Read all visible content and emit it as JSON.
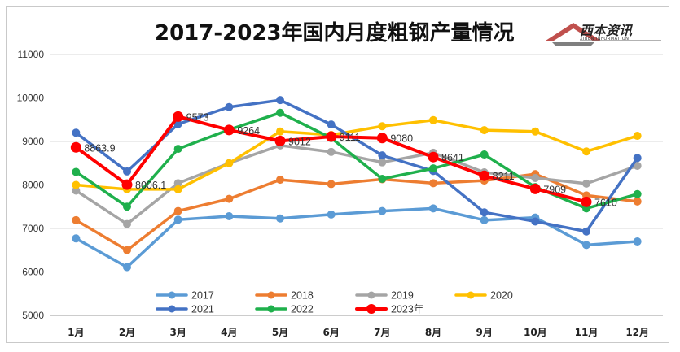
{
  "chart_data": {
    "type": "line",
    "title": "2017-2023年国内月度粗钢产量情况",
    "categories": [
      "1月",
      "2月",
      "3月",
      "4月",
      "5月",
      "6月",
      "7月",
      "8月",
      "9月",
      "10月",
      "11月",
      "12月"
    ],
    "ylim": [
      5000,
      11000
    ],
    "yticks": [
      5000,
      6000,
      7000,
      8000,
      9000,
      10000,
      11000
    ],
    "grid": true,
    "legend_position": "bottom",
    "series": [
      {
        "name": "2017",
        "color": "#5b9bd5",
        "values": [
          6770,
          6110,
          7200,
          7280,
          7230,
          7320,
          7400,
          7460,
          7190,
          7250,
          6620,
          6700
        ]
      },
      {
        "name": "2018",
        "color": "#ed7d31",
        "values": [
          7190,
          6500,
          7400,
          7680,
          8120,
          8020,
          8130,
          8040,
          8100,
          8250,
          7760,
          7620
        ]
      },
      {
        "name": "2019",
        "color": "#a5a5a5",
        "values": [
          7870,
          7100,
          8040,
          8500,
          8910,
          8760,
          8520,
          8740,
          8290,
          8160,
          8030,
          8440
        ]
      },
      {
        "name": "2020",
        "color": "#ffc000",
        "values": [
          8000,
          7900,
          7900,
          8500,
          9230,
          9150,
          9350,
          9490,
          9260,
          9230,
          8770,
          9130
        ]
      },
      {
        "name": "2021",
        "color": "#4472c4",
        "values": [
          9200,
          8310,
          9400,
          9790,
          9950,
          9390,
          8680,
          8320,
          7370,
          7160,
          6930,
          8620
        ]
      },
      {
        "name": "2022",
        "color": "#1fb04c",
        "values": [
          8300,
          7500,
          8830,
          9270,
          9660,
          9080,
          8140,
          8380,
          8700,
          7950,
          7460,
          7790
        ]
      },
      {
        "name": "2023年",
        "color": "#ff0000",
        "values": [
          8863.9,
          8006.1,
          9573,
          9264,
          9012,
          9111,
          9080,
          8641,
          8211,
          7909,
          7610,
          null
        ],
        "labels": [
          "8863.9",
          "8006.1",
          "9573",
          "9264",
          "9012",
          "9111",
          "9080",
          "8641",
          "8211",
          "7909",
          "7610",
          null
        ]
      }
    ]
  },
  "brand": {
    "name": "西本资讯",
    "subtitle": "XIBEN INFORMATION"
  }
}
